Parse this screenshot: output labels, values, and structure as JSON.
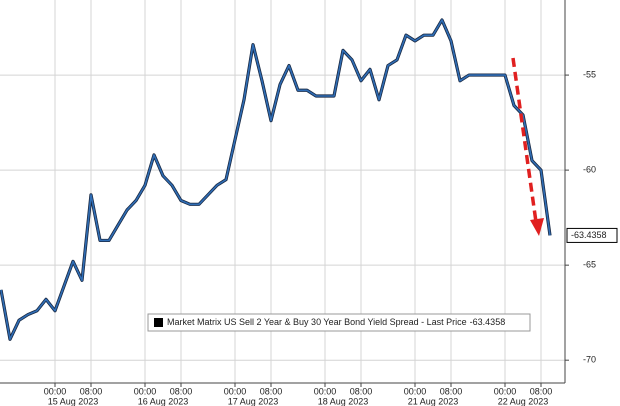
{
  "chart_data": {
    "type": "line",
    "categories": [
      null,
      null,
      null,
      null,
      null,
      null,
      "00:00",
      null,
      null,
      null,
      "08:00",
      null,
      null,
      null,
      null,
      null,
      "00:00",
      null,
      null,
      null,
      "08:00",
      null,
      null,
      null,
      null,
      null,
      "00:00",
      null,
      null,
      null,
      "08:00",
      null,
      null,
      null,
      null,
      null,
      "00:00",
      null,
      null,
      null,
      "08:00",
      null,
      null,
      null,
      null,
      null,
      "00:00",
      null,
      null,
      null,
      "08:00",
      null,
      null,
      null,
      null,
      null,
      "00:00",
      null,
      null,
      null,
      "08:00",
      null
    ],
    "dates": [
      "15 Aug 2023",
      "16 Aug 2023",
      "17 Aug 2023",
      "18 Aug 2023",
      "21 Aug 2023",
      "22 Aug 2023"
    ],
    "series": [
      {
        "name": "Market Matrix US Sell 2 Year & Buy 30 Year Bond Yield Spread - Last Price",
        "color": "#2f6db5",
        "values": [
          -66.3,
          -68.9,
          -67.9,
          -67.6,
          -67.4,
          -66.8,
          -67.4,
          -66.1,
          -64.8,
          -65.8,
          -61.3,
          -63.7,
          -63.7,
          -62.9,
          -62.1,
          -61.6,
          -60.8,
          -59.2,
          -60.3,
          -60.8,
          -61.6,
          -61.8,
          -61.8,
          -61.3,
          -60.8,
          -60.5,
          -58.4,
          -56.3,
          -53.4,
          -55.3,
          -57.4,
          -55.5,
          -54.5,
          -55.8,
          -55.8,
          -56.1,
          -56.1,
          -56.1,
          -53.7,
          -54.2,
          -55.3,
          -54.7,
          -56.3,
          -54.5,
          -54.2,
          -52.9,
          -53.2,
          -52.9,
          -52.9,
          -52.1,
          -53.2,
          -55.3,
          -55.0,
          -55.0,
          -55.0,
          -55.0,
          -55.0,
          -56.6,
          -57.1,
          -59.5,
          -60.0,
          -63.4358
        ]
      }
    ],
    "last_price": -63.4358,
    "ylim": [
      -71.2,
      -51.05
    ],
    "yticks": [
      -55,
      -60,
      -65,
      -70
    ],
    "grid": true
  }
}
